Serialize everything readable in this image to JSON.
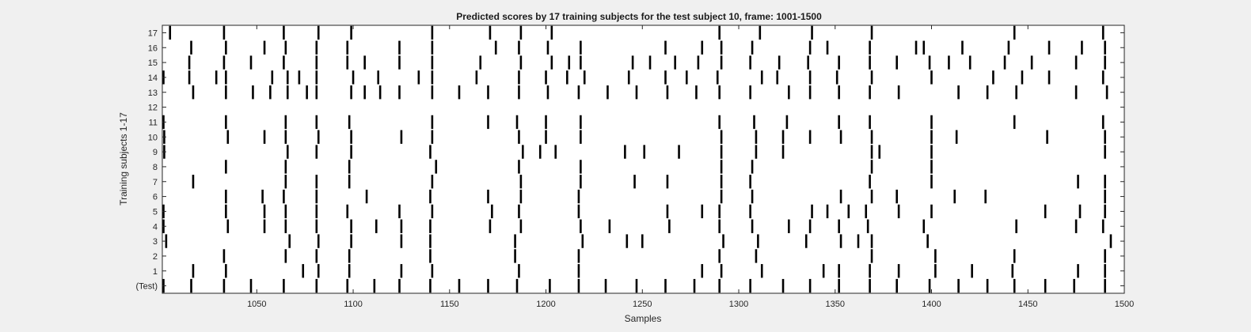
{
  "chart_data": {
    "type": "raster",
    "title": "Predicted scores by 17 training subjects for the test subject 10, frame: 1001-1500",
    "xlabel": "Samples",
    "ylabel": "Training subjects 1-17",
    "xlim": [
      1001,
      1500
    ],
    "xticks": [
      1050,
      1100,
      1150,
      1200,
      1250,
      1300,
      1350,
      1400,
      1450,
      1500
    ],
    "yticklabels": [
      "(Test)",
      "1",
      "2",
      "3",
      "4",
      "5",
      "6",
      "7",
      "8",
      "9",
      "10",
      "11",
      "12",
      "13",
      "14",
      "15",
      "16",
      "17"
    ],
    "grid": false,
    "colors": {
      "background": "#f0f0f0",
      "plot_area": "#ffffff",
      "mark": "#000000",
      "axis": "#262626"
    },
    "series": [
      {
        "values": [
          1001,
          1016,
          1033,
          1047,
          1064,
          1081,
          1097,
          1111,
          1124,
          1140,
          1155,
          1170,
          1185,
          1202,
          1217,
          1231,
          1247,
          1262,
          1277,
          1290,
          1306,
          1323,
          1337,
          1352,
          1368,
          1382,
          1399,
          1414,
          1429,
          1443,
          1459,
          1474,
          1490
        ]
      },
      {
        "values": [
          1017,
          1034,
          1074,
          1082,
          1098,
          1125,
          1141,
          1186,
          1217,
          1281,
          1291,
          1312,
          1344,
          1352,
          1368,
          1383,
          1402,
          1421,
          1442,
          1476,
          1490
        ]
      },
      {
        "values": [
          1033,
          1065,
          1081,
          1098,
          1140,
          1184,
          1217,
          1290,
          1309,
          1369,
          1402,
          1443,
          1490
        ]
      },
      {
        "values": [
          1003,
          1067,
          1082,
          1099,
          1125,
          1140,
          1184,
          1219,
          1242,
          1250,
          1292,
          1310,
          1335,
          1353,
          1362,
          1369,
          1398,
          1493
        ]
      },
      {
        "values": [
          1001,
          1035,
          1054,
          1065,
          1081,
          1099,
          1112,
          1125,
          1140,
          1171,
          1187,
          1218,
          1233,
          1264,
          1290,
          1307,
          1326,
          1337,
          1352,
          1367,
          1396,
          1444,
          1475,
          1489
        ]
      },
      {
        "values": [
          1001,
          1034,
          1054,
          1065,
          1081,
          1097,
          1124,
          1141,
          1172,
          1186,
          1217,
          1263,
          1281,
          1290,
          1306,
          1338,
          1346,
          1357,
          1366,
          1383,
          1400,
          1459,
          1477,
          1490
        ]
      },
      {
        "values": [
          1034,
          1053,
          1064,
          1081,
          1107,
          1140,
          1170,
          1187,
          1217,
          1291,
          1307,
          1353,
          1369,
          1382,
          1412,
          1428,
          1490
        ]
      },
      {
        "values": [
          1017,
          1065,
          1081,
          1098,
          1141,
          1187,
          1218,
          1246,
          1263,
          1291,
          1306,
          1368,
          1400,
          1476,
          1490
        ]
      },
      {
        "values": [
          1034,
          1065,
          1098,
          1143,
          1186,
          1218,
          1291,
          1307,
          1369,
          1400
        ]
      },
      {
        "values": [
          1002,
          1066,
          1081,
          1099,
          1140,
          1188,
          1197,
          1205,
          1241,
          1251,
          1269,
          1291,
          1309,
          1323,
          1369,
          1373,
          1400,
          1490
        ]
      },
      {
        "values": [
          1002,
          1035,
          1054,
          1065,
          1082,
          1099,
          1125,
          1141,
          1186,
          1200,
          1218,
          1291,
          1309,
          1323,
          1337,
          1353,
          1369,
          1400,
          1413,
          1460,
          1490
        ]
      },
      {
        "values": [
          1001,
          1034,
          1065,
          1081,
          1098,
          1141,
          1170,
          1185,
          1200,
          1218,
          1290,
          1308,
          1325,
          1352,
          1368,
          1400,
          1443,
          1489
        ]
      },
      {
        "values": []
      },
      {
        "values": [
          1017,
          1034,
          1048,
          1057,
          1066,
          1076,
          1081,
          1099,
          1106,
          1114,
          1124,
          1141,
          1155,
          1170,
          1186,
          1201,
          1217,
          1232,
          1247,
          1263,
          1278,
          1290,
          1306,
          1326,
          1337,
          1352,
          1368,
          1383,
          1414,
          1429,
          1444,
          1475,
          1491
        ]
      },
      {
        "values": [
          1001,
          1015,
          1029,
          1034,
          1058,
          1066,
          1072,
          1081,
          1100,
          1113,
          1134,
          1141,
          1164,
          1186,
          1200,
          1211,
          1220,
          1243,
          1262,
          1273,
          1289,
          1312,
          1320,
          1337,
          1351,
          1369,
          1400,
          1432,
          1447,
          1461,
          1489
        ]
      },
      {
        "values": [
          1015,
          1033,
          1047,
          1064,
          1081,
          1097,
          1106,
          1124,
          1141,
          1166,
          1187,
          1203,
          1212,
          1218,
          1245,
          1254,
          1267,
          1279,
          1291,
          1306,
          1321,
          1336,
          1352,
          1368,
          1382,
          1399,
          1409,
          1420,
          1438,
          1452,
          1475,
          1490
        ]
      },
      {
        "values": [
          1016,
          1034,
          1054,
          1065,
          1081,
          1097,
          1124,
          1141,
          1174,
          1186,
          1201,
          1218,
          1262,
          1281,
          1291,
          1307,
          1337,
          1346,
          1368,
          1392,
          1396,
          1416,
          1440,
          1461,
          1478,
          1490
        ]
      },
      {
        "values": [
          1005,
          1033,
          1064,
          1082,
          1099,
          1141,
          1171,
          1187,
          1203,
          1290,
          1311,
          1338,
          1369,
          1443,
          1489
        ]
      }
    ]
  }
}
